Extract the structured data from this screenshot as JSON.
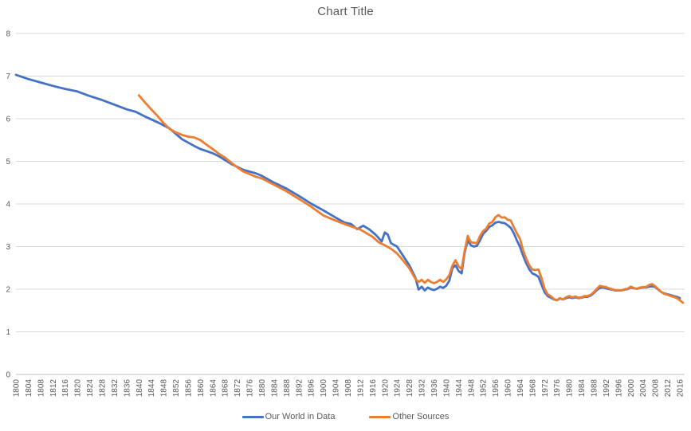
{
  "title": "Chart Title",
  "colors": {
    "series_blue": "#4472C4",
    "series_orange": "#ED7D31",
    "gridline": "#D9D9D9",
    "axis_line": "#BFBFBF",
    "text": "#595959"
  },
  "legend": {
    "items": [
      "Our World in Data",
      "Other Sources"
    ]
  },
  "chart_data": {
    "type": "line",
    "title": "Chart Title",
    "xlabel": "",
    "ylabel": "",
    "grid": true,
    "legend_position": "bottom",
    "ylim": [
      0,
      8
    ],
    "xlim": [
      1800,
      2017
    ],
    "y_ticks": [
      0,
      1,
      2,
      3,
      4,
      5,
      6,
      7,
      8
    ],
    "x_ticks": [
      1800,
      1804,
      1808,
      1812,
      1816,
      1820,
      1824,
      1828,
      1832,
      1836,
      1840,
      1844,
      1848,
      1852,
      1856,
      1860,
      1864,
      1868,
      1872,
      1876,
      1880,
      1884,
      1888,
      1892,
      1896,
      1900,
      1904,
      1908,
      1912,
      1916,
      1920,
      1924,
      1928,
      1932,
      1936,
      1940,
      1944,
      1948,
      1952,
      1956,
      1960,
      1964,
      1968,
      1972,
      1976,
      1980,
      1984,
      1988,
      1992,
      1996,
      2000,
      2004,
      2008,
      2012,
      2016
    ],
    "series": [
      {
        "name": "Our World in Data",
        "color": "#4472C4",
        "points": [
          [
            1800,
            7.03
          ],
          [
            1804,
            6.93
          ],
          [
            1808,
            6.85
          ],
          [
            1812,
            6.77
          ],
          [
            1816,
            6.7
          ],
          [
            1820,
            6.64
          ],
          [
            1824,
            6.53
          ],
          [
            1828,
            6.44
          ],
          [
            1832,
            6.33
          ],
          [
            1836,
            6.22
          ],
          [
            1839,
            6.16
          ],
          [
            1842,
            6.05
          ],
          [
            1846,
            5.92
          ],
          [
            1850,
            5.77
          ],
          [
            1854,
            5.52
          ],
          [
            1858,
            5.36
          ],
          [
            1860,
            5.29
          ],
          [
            1864,
            5.19
          ],
          [
            1866,
            5.12
          ],
          [
            1870,
            4.94
          ],
          [
            1874,
            4.8
          ],
          [
            1878,
            4.72
          ],
          [
            1880,
            4.66
          ],
          [
            1884,
            4.5
          ],
          [
            1888,
            4.36
          ],
          [
            1892,
            4.19
          ],
          [
            1896,
            4.01
          ],
          [
            1900,
            3.85
          ],
          [
            1904,
            3.68
          ],
          [
            1907,
            3.56
          ],
          [
            1909,
            3.53
          ],
          [
            1911,
            3.41
          ],
          [
            1913,
            3.49
          ],
          [
            1915,
            3.4
          ],
          [
            1917,
            3.28
          ],
          [
            1919,
            3.12
          ],
          [
            1920,
            3.33
          ],
          [
            1921,
            3.28
          ],
          [
            1922,
            3.08
          ],
          [
            1924,
            3.0
          ],
          [
            1926,
            2.78
          ],
          [
            1928,
            2.56
          ],
          [
            1930,
            2.27
          ],
          [
            1931,
            1.99
          ],
          [
            1932,
            2.06
          ],
          [
            1933,
            1.97
          ],
          [
            1934,
            2.04
          ],
          [
            1935,
            2.0
          ],
          [
            1936,
            1.98
          ],
          [
            1937,
            2.01
          ],
          [
            1938,
            2.06
          ],
          [
            1939,
            2.03
          ],
          [
            1940,
            2.08
          ],
          [
            1941,
            2.2
          ],
          [
            1942,
            2.49
          ],
          [
            1943,
            2.56
          ],
          [
            1944,
            2.43
          ],
          [
            1945,
            2.37
          ],
          [
            1946,
            2.86
          ],
          [
            1947,
            3.14
          ],
          [
            1948,
            3.03
          ],
          [
            1949,
            3.0
          ],
          [
            1950,
            3.02
          ],
          [
            1951,
            3.15
          ],
          [
            1952,
            3.3
          ],
          [
            1953,
            3.37
          ],
          [
            1954,
            3.46
          ],
          [
            1955,
            3.5
          ],
          [
            1956,
            3.56
          ],
          [
            1957,
            3.58
          ],
          [
            1958,
            3.56
          ],
          [
            1959,
            3.55
          ],
          [
            1960,
            3.5
          ],
          [
            1961,
            3.44
          ],
          [
            1962,
            3.31
          ],
          [
            1963,
            3.14
          ],
          [
            1964,
            2.99
          ],
          [
            1965,
            2.79
          ],
          [
            1966,
            2.61
          ],
          [
            1967,
            2.47
          ],
          [
            1968,
            2.37
          ],
          [
            1969,
            2.34
          ],
          [
            1970,
            2.29
          ],
          [
            1971,
            2.1
          ],
          [
            1972,
            1.93
          ],
          [
            1973,
            1.84
          ],
          [
            1974,
            1.8
          ],
          [
            1975,
            1.76
          ],
          [
            1976,
            1.74
          ],
          [
            1977,
            1.78
          ],
          [
            1978,
            1.76
          ],
          [
            1979,
            1.79
          ],
          [
            1980,
            1.81
          ],
          [
            1981,
            1.79
          ],
          [
            1982,
            1.81
          ],
          [
            1983,
            1.79
          ],
          [
            1984,
            1.8
          ],
          [
            1985,
            1.82
          ],
          [
            1986,
            1.82
          ],
          [
            1987,
            1.85
          ],
          [
            1988,
            1.91
          ],
          [
            1989,
            1.98
          ],
          [
            1990,
            2.03
          ],
          [
            1991,
            2.04
          ],
          [
            1992,
            2.02
          ],
          [
            1993,
            2.0
          ],
          [
            1994,
            1.99
          ],
          [
            1995,
            1.97
          ],
          [
            1996,
            1.97
          ],
          [
            1997,
            1.97
          ],
          [
            1998,
            1.99
          ],
          [
            1999,
            2.0
          ],
          [
            2000,
            2.04
          ],
          [
            2001,
            2.02
          ],
          [
            2002,
            2.01
          ],
          [
            2003,
            2.03
          ],
          [
            2004,
            2.04
          ],
          [
            2005,
            2.04
          ],
          [
            2006,
            2.06
          ],
          [
            2007,
            2.07
          ],
          [
            2008,
            2.05
          ],
          [
            2009,
            1.99
          ],
          [
            2010,
            1.93
          ],
          [
            2011,
            1.9
          ],
          [
            2012,
            1.88
          ],
          [
            2013,
            1.86
          ],
          [
            2014,
            1.84
          ],
          [
            2015,
            1.82
          ],
          [
            2016,
            1.79
          ]
        ]
      },
      {
        "name": "Other Sources",
        "color": "#ED7D31",
        "points": [
          [
            1840,
            6.55
          ],
          [
            1842,
            6.38
          ],
          [
            1844,
            6.22
          ],
          [
            1846,
            6.07
          ],
          [
            1848,
            5.9
          ],
          [
            1850,
            5.76
          ],
          [
            1852,
            5.68
          ],
          [
            1854,
            5.62
          ],
          [
            1856,
            5.58
          ],
          [
            1858,
            5.56
          ],
          [
            1860,
            5.5
          ],
          [
            1862,
            5.39
          ],
          [
            1864,
            5.29
          ],
          [
            1866,
            5.18
          ],
          [
            1868,
            5.09
          ],
          [
            1870,
            4.97
          ],
          [
            1872,
            4.86
          ],
          [
            1874,
            4.76
          ],
          [
            1876,
            4.7
          ],
          [
            1878,
            4.64
          ],
          [
            1880,
            4.6
          ],
          [
            1884,
            4.45
          ],
          [
            1888,
            4.3
          ],
          [
            1892,
            4.12
          ],
          [
            1896,
            3.94
          ],
          [
            1900,
            3.73
          ],
          [
            1904,
            3.61
          ],
          [
            1908,
            3.5
          ],
          [
            1912,
            3.4
          ],
          [
            1916,
            3.23
          ],
          [
            1918,
            3.1
          ],
          [
            1920,
            3.03
          ],
          [
            1922,
            2.95
          ],
          [
            1924,
            2.84
          ],
          [
            1926,
            2.67
          ],
          [
            1928,
            2.49
          ],
          [
            1930,
            2.24
          ],
          [
            1931,
            2.17
          ],
          [
            1932,
            2.22
          ],
          [
            1933,
            2.15
          ],
          [
            1934,
            2.22
          ],
          [
            1935,
            2.17
          ],
          [
            1936,
            2.14
          ],
          [
            1937,
            2.17
          ],
          [
            1938,
            2.22
          ],
          [
            1939,
            2.17
          ],
          [
            1940,
            2.23
          ],
          [
            1941,
            2.33
          ],
          [
            1942,
            2.55
          ],
          [
            1943,
            2.68
          ],
          [
            1944,
            2.54
          ],
          [
            1945,
            2.47
          ],
          [
            1946,
            2.9
          ],
          [
            1947,
            3.25
          ],
          [
            1948,
            3.1
          ],
          [
            1949,
            3.09
          ],
          [
            1950,
            3.08
          ],
          [
            1951,
            3.25
          ],
          [
            1952,
            3.36
          ],
          [
            1953,
            3.42
          ],
          [
            1954,
            3.54
          ],
          [
            1955,
            3.58
          ],
          [
            1956,
            3.69
          ],
          [
            1957,
            3.74
          ],
          [
            1958,
            3.68
          ],
          [
            1959,
            3.69
          ],
          [
            1960,
            3.63
          ],
          [
            1961,
            3.61
          ],
          [
            1962,
            3.45
          ],
          [
            1963,
            3.31
          ],
          [
            1964,
            3.18
          ],
          [
            1965,
            2.91
          ],
          [
            1966,
            2.72
          ],
          [
            1967,
            2.56
          ],
          [
            1968,
            2.46
          ],
          [
            1969,
            2.45
          ],
          [
            1970,
            2.46
          ],
          [
            1971,
            2.26
          ],
          [
            1972,
            2.01
          ],
          [
            1973,
            1.88
          ],
          [
            1974,
            1.84
          ],
          [
            1975,
            1.77
          ],
          [
            1976,
            1.74
          ],
          [
            1977,
            1.79
          ],
          [
            1978,
            1.76
          ],
          [
            1979,
            1.81
          ],
          [
            1980,
            1.84
          ],
          [
            1981,
            1.81
          ],
          [
            1982,
            1.83
          ],
          [
            1983,
            1.8
          ],
          [
            1984,
            1.81
          ],
          [
            1985,
            1.84
          ],
          [
            1986,
            1.84
          ],
          [
            1987,
            1.87
          ],
          [
            1988,
            1.93
          ],
          [
            1989,
            2.01
          ],
          [
            1990,
            2.08
          ],
          [
            1991,
            2.06
          ],
          [
            1992,
            2.05
          ],
          [
            1993,
            2.02
          ],
          [
            1994,
            2.0
          ],
          [
            1995,
            1.98
          ],
          [
            1996,
            1.98
          ],
          [
            1997,
            1.97
          ],
          [
            1998,
            2.0
          ],
          [
            1999,
            2.01
          ],
          [
            2000,
            2.06
          ],
          [
            2001,
            2.03
          ],
          [
            2002,
            2.01
          ],
          [
            2003,
            2.04
          ],
          [
            2004,
            2.05
          ],
          [
            2005,
            2.05
          ],
          [
            2006,
            2.1
          ],
          [
            2007,
            2.12
          ],
          [
            2008,
            2.07
          ],
          [
            2009,
            2.0
          ],
          [
            2010,
            1.93
          ],
          [
            2011,
            1.89
          ],
          [
            2012,
            1.87
          ],
          [
            2013,
            1.84
          ],
          [
            2014,
            1.82
          ],
          [
            2015,
            1.79
          ],
          [
            2016,
            1.74
          ],
          [
            2017,
            1.68
          ]
        ]
      }
    ]
  }
}
